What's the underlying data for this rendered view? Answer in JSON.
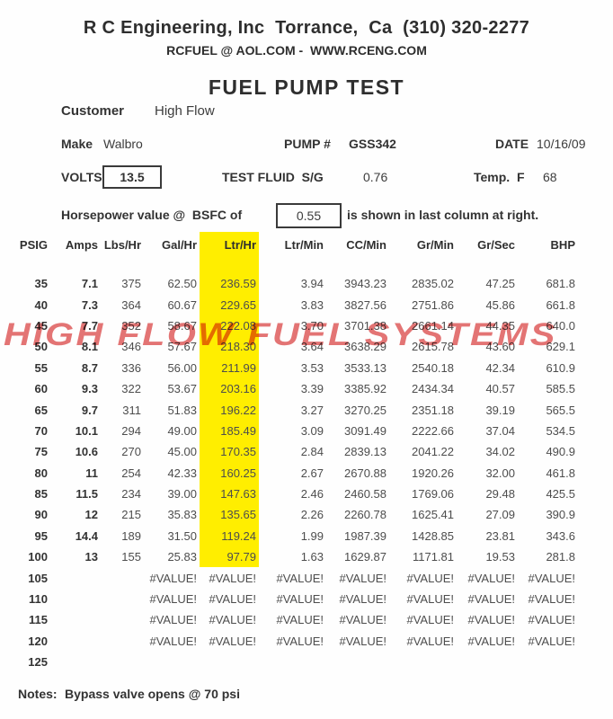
{
  "document": {
    "company_line": "R C Engineering, Inc  Torrance,  Ca  (310) 320-2277",
    "contact_line": "RCFUEL @ AOL.COM -  WWW.RCENG.COM",
    "title": "FUEL PUMP TEST"
  },
  "info": {
    "customer_label": "Customer",
    "customer_value": "High Flow",
    "make_label": "Make",
    "make_value": "Walbro",
    "pump_label": "PUMP #",
    "pump_value": "GSS342",
    "date_label": "DATE",
    "date_value": "10/16/09",
    "volts_label": "VOLTS",
    "volts_value": "13.5",
    "test_fluid_label": "TEST FLUID  S/G",
    "test_fluid_value": "0.76",
    "temp_label": "Temp.  F",
    "temp_value": "68",
    "bsfc_label": "Horsepower value @  BSFC of",
    "bsfc_value": "0.55",
    "bsfc_suffix": "is shown in last column at right."
  },
  "table": {
    "columns": [
      "PSIG",
      "Amps",
      "Lbs/Hr",
      "Gal/Hr",
      "Ltr/Hr",
      "Ltr/Min",
      "CC/Min",
      "Gr/Min",
      "Gr/Sec",
      "BHP"
    ],
    "highlight": {
      "column_index": 4,
      "row_count": 14,
      "color": "#ffee00"
    },
    "rows": [
      [
        "35",
        "7.1",
        "375",
        "62.50",
        "236.59",
        "3.94",
        "3943.23",
        "2835.02",
        "47.25",
        "681.8"
      ],
      [
        "40",
        "7.3",
        "364",
        "60.67",
        "229.65",
        "3.83",
        "3827.56",
        "2751.86",
        "45.86",
        "661.8"
      ],
      [
        "45",
        "7.7",
        "352",
        "58.67",
        "222.08",
        "3.70",
        "3701.38",
        "2661.14",
        "44.35",
        "640.0"
      ],
      [
        "50",
        "8.1",
        "346",
        "57.67",
        "218.30",
        "3.64",
        "3638.29",
        "2615.78",
        "43.60",
        "629.1"
      ],
      [
        "55",
        "8.7",
        "336",
        "56.00",
        "211.99",
        "3.53",
        "3533.13",
        "2540.18",
        "42.34",
        "610.9"
      ],
      [
        "60",
        "9.3",
        "322",
        "53.67",
        "203.16",
        "3.39",
        "3385.92",
        "2434.34",
        "40.57",
        "585.5"
      ],
      [
        "65",
        "9.7",
        "311",
        "51.83",
        "196.22",
        "3.27",
        "3270.25",
        "2351.18",
        "39.19",
        "565.5"
      ],
      [
        "70",
        "10.1",
        "294",
        "49.00",
        "185.49",
        "3.09",
        "3091.49",
        "2222.66",
        "37.04",
        "534.5"
      ],
      [
        "75",
        "10.6",
        "270",
        "45.00",
        "170.35",
        "2.84",
        "2839.13",
        "2041.22",
        "34.02",
        "490.9"
      ],
      [
        "80",
        "11",
        "254",
        "42.33",
        "160.25",
        "2.67",
        "2670.88",
        "1920.26",
        "32.00",
        "461.8"
      ],
      [
        "85",
        "11.5",
        "234",
        "39.00",
        "147.63",
        "2.46",
        "2460.58",
        "1769.06",
        "29.48",
        "425.5"
      ],
      [
        "90",
        "12",
        "215",
        "35.83",
        "135.65",
        "2.26",
        "2260.78",
        "1625.41",
        "27.09",
        "390.9"
      ],
      [
        "95",
        "14.4",
        "189",
        "31.50",
        "119.24",
        "1.99",
        "1987.39",
        "1428.85",
        "23.81",
        "343.6"
      ],
      [
        "100",
        "13",
        "155",
        "25.83",
        "97.79",
        "1.63",
        "1629.87",
        "1171.81",
        "19.53",
        "281.8"
      ],
      [
        "105",
        "",
        "",
        "#VALUE!",
        "#VALUE!",
        "#VALUE!",
        "#VALUE!",
        "#VALUE!",
        "#VALUE!",
        "#VALUE!"
      ],
      [
        "110",
        "",
        "",
        "#VALUE!",
        "#VALUE!",
        "#VALUE!",
        "#VALUE!",
        "#VALUE!",
        "#VALUE!",
        "#VALUE!"
      ],
      [
        "115",
        "",
        "",
        "#VALUE!",
        "#VALUE!",
        "#VALUE!",
        "#VALUE!",
        "#VALUE!",
        "#VALUE!",
        "#VALUE!"
      ],
      [
        "120",
        "",
        "",
        "#VALUE!",
        "#VALUE!",
        "#VALUE!",
        "#VALUE!",
        "#VALUE!",
        "#VALUE!",
        "#VALUE!"
      ],
      [
        "125",
        "",
        "",
        "",
        "",
        "",
        "",
        "",
        "",
        ""
      ]
    ]
  },
  "watermark": {
    "text": "HIGH FLOW FUEL SYSTEMS",
    "color": "#e26868"
  },
  "notes": {
    "label": "Notes:",
    "text": "Bypass valve opens @ 70 psi"
  }
}
